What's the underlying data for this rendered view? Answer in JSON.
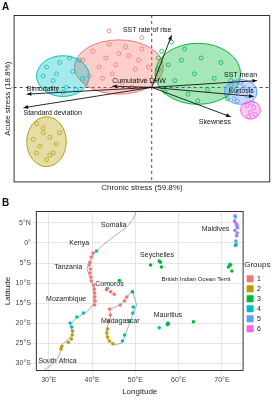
{
  "chart_data": [
    {
      "type": "scatter",
      "title": "A",
      "x_label": "Chronic stress (59.8%)",
      "y_label": "Acute stress (18.8%)",
      "xlim": [
        -4.2,
        3.6
      ],
      "ylim": [
        -4.2,
        3.2
      ],
      "xticks": [
        0
      ],
      "yticks": [
        0
      ],
      "tick_labels": false,
      "grid": false,
      "marker": "open_circle",
      "series": [
        {
          "color": "#F8766D",
          "ellipse": {
            "cx": -1.0,
            "cy": 0.9,
            "rx": 1.35,
            "ry": 1.2
          },
          "x": [
            -2.1,
            -1.8,
            -1.5,
            -1.3,
            -1.1,
            -0.9,
            -0.7,
            -0.5,
            -0.3,
            -0.2,
            -1.6,
            -1.0,
            -0.6,
            -1.9,
            -0.4,
            -1.2,
            -0.8,
            -1.4,
            -0.1,
            -2.0,
            -1.3,
            -0.3
          ],
          "values": [
            1.2,
            1.6,
            0.4,
            1.9,
            1.0,
            0.2,
            1.4,
            0.8,
            1.7,
            0.3,
            0.9,
            1.5,
            0.0,
            0.5,
            1.2,
            0.6,
            1.8,
            1.3,
            0.9,
            0.2,
            2.5,
            2.2
          ]
        },
        {
          "color": "#B79F00",
          "ellipse": {
            "cx": -3.2,
            "cy": -2.4,
            "rx": 0.6,
            "ry": 1.1
          },
          "x": [
            -3.5,
            -3.3,
            -3.1,
            -3.4,
            -3.0,
            -3.2,
            -3.6,
            -2.9,
            -3.3,
            -3.1,
            -2.8,
            -3.5
          ],
          "values": [
            -1.6,
            -2.0,
            -2.2,
            -2.6,
            -2.9,
            -3.2,
            -2.3,
            -2.5,
            -1.8,
            -3.0,
            -2.0,
            -2.9
          ]
        },
        {
          "color": "#00BA38",
          "ellipse": {
            "cx": 1.4,
            "cy": 0.6,
            "rx": 1.3,
            "ry": 1.35
          },
          "x": [
            0.3,
            0.5,
            0.7,
            0.9,
            1.1,
            1.3,
            1.5,
            1.7,
            1.9,
            2.1,
            2.3,
            0.6,
            1.0,
            1.4,
            2.4,
            0.4,
            0.2,
            0.2
          ],
          "values": [
            1.6,
            1.0,
            0.3,
            1.2,
            -0.3,
            0.6,
            1.3,
            -0.1,
            0.4,
            1.1,
            -0.5,
            2.0,
            1.7,
            -0.6,
            0.3,
            -0.2,
            0.8,
            1.3
          ]
        },
        {
          "color": "#00BFC4",
          "ellipse": {
            "cx": -2.7,
            "cy": 0.5,
            "rx": 0.8,
            "ry": 0.9
          },
          "x": [
            -3.2,
            -3.0,
            -2.8,
            -2.6,
            -2.4,
            -2.2,
            -2.7,
            -3.3,
            -2.1,
            -2.5,
            -2.9,
            -2.3
          ],
          "values": [
            0.9,
            0.3,
            1.1,
            0.0,
            0.7,
            1.2,
            -0.2,
            0.5,
            0.4,
            1.3,
            0.6,
            -0.1
          ]
        },
        {
          "color": "#619CFF",
          "ellipse": {
            "cx": 2.7,
            "cy": -0.2,
            "rx": 0.5,
            "ry": 0.55
          },
          "x": [
            2.4,
            2.6,
            2.8,
            2.9,
            2.5,
            2.7,
            3.0,
            2.6
          ],
          "values": [
            0.1,
            -0.2,
            0.0,
            -0.4,
            -0.5,
            0.2,
            -0.1,
            -0.6
          ]
        },
        {
          "color": "#F564E3",
          "ellipse": {
            "cx": 3.0,
            "cy": -1.0,
            "rx": 0.3,
            "ry": 0.4
          },
          "x": [
            2.9,
            3.0,
            3.1,
            2.95,
            3.05,
            3.15
          ],
          "values": [
            -0.8,
            -1.1,
            -0.9,
            -1.3,
            -0.7,
            -1.2
          ]
        }
      ],
      "loadings": [
        {
          "label": "SST rate of rise",
          "x": 0.6,
          "y": 2.3
        },
        {
          "label": "SST mean",
          "x": 3.2,
          "y": 0.3
        },
        {
          "label": "Kurtosis",
          "x": 3.1,
          "y": -0.4
        },
        {
          "label": "Skewness",
          "x": 2.4,
          "y": -1.3
        },
        {
          "label": "Bimodality",
          "x": -3.8,
          "y": -0.3
        },
        {
          "label": "Standard deviation",
          "x": -3.9,
          "y": -0.9
        },
        {
          "label": "Cumulative DHW",
          "x": -1.2,
          "y": 0.05
        }
      ]
    },
    {
      "type": "scatter",
      "title": "B",
      "x_label": "Longitude",
      "y_label": "Latitude",
      "xlim": [
        27,
        75
      ],
      "ylim": [
        -32,
        8
      ],
      "xticks": [
        {
          "value": 30,
          "label": "30°E"
        },
        {
          "value": 40,
          "label": "40°E"
        },
        {
          "value": 50,
          "label": "50°E"
        },
        {
          "value": 60,
          "label": "60°E"
        },
        {
          "value": 70,
          "label": "70°E"
        }
      ],
      "yticks": [
        {
          "value": 5,
          "label": "5°N"
        },
        {
          "value": 0,
          "label": "0°"
        },
        {
          "value": -5,
          "label": "5°S"
        },
        {
          "value": -10,
          "label": "10°S"
        },
        {
          "value": -15,
          "label": "15°S"
        },
        {
          "value": -20,
          "label": "20°S"
        },
        {
          "value": -25,
          "label": "25°S"
        },
        {
          "value": -30,
          "label": "30°S"
        }
      ],
      "grid": true,
      "marker": "circle",
      "legend": "right",
      "legend_title": "Groups",
      "series": [
        {
          "name": "1",
          "color": "#F8766D",
          "x": [
            40.2,
            39.8,
            39.5,
            39.3,
            39.6,
            39.5,
            39.7,
            39.8,
            40.3,
            40.5,
            40.6,
            40.6,
            40.7,
            40.6,
            48.0,
            47.5,
            46.5,
            44.0,
            44.2,
            43.8,
            43.3,
            44.3,
            45.1
          ],
          "values": [
            -2.5,
            -3.5,
            -4.8,
            -5.5,
            -6.5,
            -7.5,
            -8.5,
            -9.5,
            -10.5,
            -11.5,
            -12.5,
            -13.5,
            -14.5,
            -15.5,
            -13.5,
            -14.5,
            -15.5,
            -16.5,
            -18.0,
            -19.5,
            -11.7,
            -12.2,
            -12.8
          ]
        },
        {
          "name": "2",
          "color": "#B79F00",
          "x": [
            35.5,
            35.4,
            35.2,
            34.5,
            33.0,
            32.8,
            43.6,
            43.4,
            43.6,
            44.0,
            44.8
          ],
          "values": [
            -22.0,
            -23.0,
            -24.0,
            -24.8,
            -25.8,
            -26.5,
            -21.5,
            -22.5,
            -23.5,
            -24.5,
            -25.2
          ]
        },
        {
          "name": "3",
          "color": "#00BA38",
          "x": [
            55.5,
            55.8,
            53.5,
            56.0,
            46.3,
            57.6,
            57.4,
            63.4,
            72.0,
            72.3,
            71.5,
            49.3
          ],
          "values": [
            -4.5,
            -4.8,
            -5.5,
            -6.0,
            -9.4,
            -20.2,
            -20.4,
            -19.7,
            -5.5,
            -7.0,
            -6.0,
            -12.2
          ]
        },
        {
          "name": "4",
          "color": "#00BFC4",
          "x": [
            35.3,
            34.9,
            36.5,
            38.0,
            49.5,
            49.4,
            48.7,
            47.5,
            47.0,
            43.5,
            57.5,
            55.5,
            71.8,
            73.1,
            41.0
          ],
          "values": [
            -21.0,
            -20.0,
            -18.5,
            -17.5,
            -16.0,
            -17.5,
            -19.5,
            -23.0,
            -24.5,
            -11.4,
            -20.0,
            -21.2,
            -5.3,
            -0.6,
            -2.0
          ]
        },
        {
          "name": "5",
          "color": "#619CFF",
          "x": [
            73.2,
            73.4,
            73.0,
            73.5,
            72.9,
            73.1,
            73.3
          ],
          "values": [
            0.5,
            1.8,
            3.2,
            4.2,
            5.5,
            6.5,
            -0.3
          ]
        },
        {
          "name": "6",
          "color": "#F564E3",
          "x": [
            73.5,
            73.6,
            73.2,
            73.0,
            73.4
          ],
          "values": [
            2.5,
            3.8,
            5.0,
            6.8,
            4.6
          ]
        }
      ],
      "coastlines": [
        [
          [
            51,
            11.5
          ],
          [
            51,
            10
          ],
          [
            49.5,
            6
          ],
          [
            48,
            4
          ],
          [
            45.5,
            2
          ],
          [
            42.5,
            -0.5
          ],
          [
            40.5,
            -2.5
          ],
          [
            39.5,
            -4.5
          ],
          [
            38.8,
            -6.5
          ],
          [
            39.5,
            -8.5
          ],
          [
            40.5,
            -11
          ],
          [
            40.5,
            -15
          ],
          [
            39,
            -17
          ],
          [
            36,
            -19
          ],
          [
            35,
            -20.5
          ],
          [
            35.5,
            -23
          ],
          [
            33,
            -25.5
          ],
          [
            32.8,
            -27
          ],
          [
            32,
            -29
          ],
          [
            30,
            -31
          ],
          [
            28,
            -32.5
          ]
        ],
        [
          [
            49.3,
            -12
          ],
          [
            50.3,
            -15.5
          ],
          [
            49.5,
            -17.5
          ],
          [
            48,
            -22
          ],
          [
            47,
            -25
          ],
          [
            45,
            -25.5
          ],
          [
            43.5,
            -24
          ],
          [
            43.3,
            -21.5
          ],
          [
            44.2,
            -19
          ],
          [
            44.2,
            -16.5
          ],
          [
            46.5,
            -15.5
          ],
          [
            48,
            -13.5
          ],
          [
            49.3,
            -12
          ]
        ]
      ],
      "annotations": [
        {
          "text": "Somalia",
          "x": 45,
          "y": 4.5
        },
        {
          "text": "Kenya",
          "x": 37,
          "y": 0
        },
        {
          "text": "Tanzania",
          "x": 34.5,
          "y": -6
        },
        {
          "text": "Seychelles",
          "x": 55,
          "y": -3
        },
        {
          "text": "Comoros",
          "x": 44,
          "y": -10.2
        },
        {
          "text": "Mozambique",
          "x": 34,
          "y": -14
        },
        {
          "text": "Madagascar",
          "x": 46.5,
          "y": -19.5
        },
        {
          "text": "Mauritius",
          "x": 57.5,
          "y": -18
        },
        {
          "text": "South Africa",
          "x": 32,
          "y": -29.5
        },
        {
          "text": "Maldives",
          "x": 68.5,
          "y": 3.5
        },
        {
          "text": "British Indian Ocean Territ",
          "x": 64,
          "y": -9
        }
      ]
    }
  ]
}
